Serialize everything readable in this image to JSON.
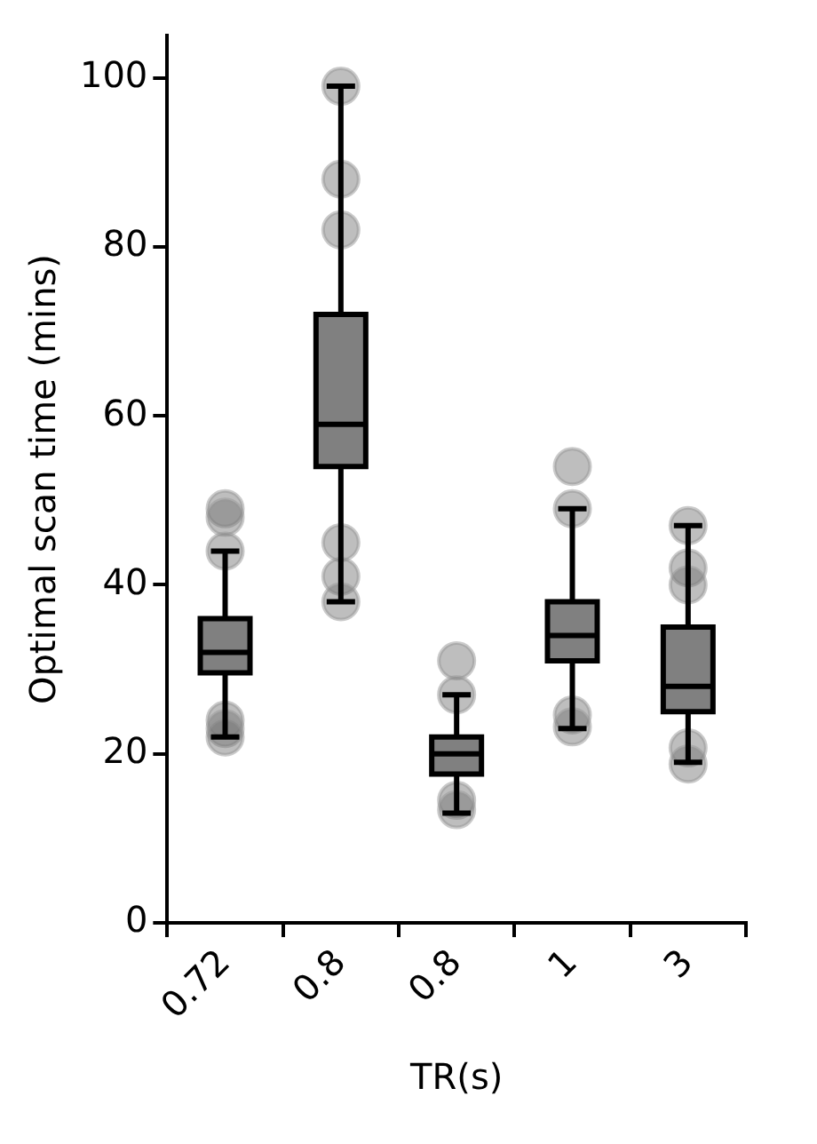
{
  "chart_data": {
    "type": "box",
    "xlabel": "TR(s)",
    "ylabel": "Optimal scan time (mins)",
    "categories": [
      "0.72",
      "0.8",
      "0.8",
      "1",
      "3"
    ],
    "color": "#808080",
    "boxes": [
      {
        "low": 22,
        "q1": 29.6,
        "median": 32,
        "q3": 36,
        "high": 44,
        "outliers": [
          49,
          48,
          44,
          24,
          23,
          22
        ]
      },
      {
        "low": 38,
        "q1": 54,
        "median": 59,
        "q3": 72,
        "high": 99,
        "outliers": [
          99,
          88,
          82,
          45,
          41,
          38
        ]
      },
      {
        "low": 13,
        "q1": 17.6,
        "median": 20,
        "q3": 22,
        "high": 27,
        "outliers": [
          31,
          27,
          14.5,
          13.4
        ]
      },
      {
        "low": 23,
        "q1": 31,
        "median": 34,
        "q3": 38,
        "high": 49,
        "outliers": [
          54,
          49,
          24.6,
          23.2
        ]
      },
      {
        "low": 19,
        "q1": 25,
        "median": 28,
        "q3": 35,
        "high": 47,
        "outliers": [
          47,
          42,
          40,
          20.7,
          18.8
        ]
      }
    ],
    "ylim": [
      0,
      105
    ],
    "yticks": [
      0,
      20,
      40,
      60,
      80,
      100
    ],
    "grid": false
  }
}
